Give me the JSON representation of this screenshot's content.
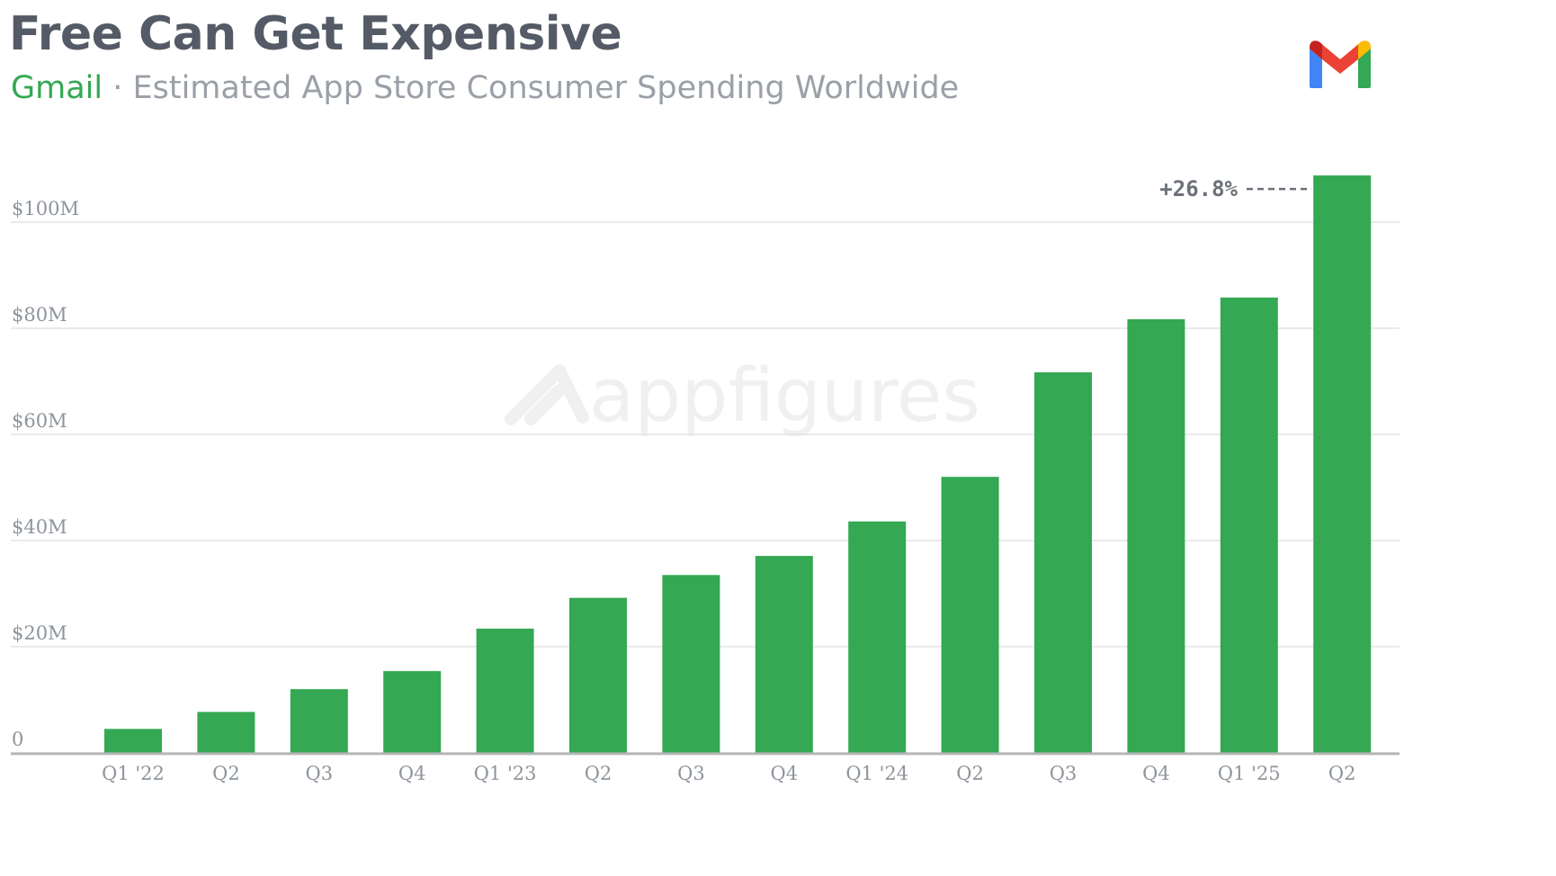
{
  "header": {
    "title": "Free Can Get Expensive",
    "app_name": "Gmail",
    "separator": " · ",
    "subtitle": "Estimated App Store Consumer Spending Worldwide",
    "logo_icon": "gmail-logo-icon"
  },
  "watermark": {
    "text": "appfigures",
    "icon": "appfigures-logo-icon"
  },
  "colors": {
    "bar": "#34a853",
    "title": "#545b66",
    "subtitle": "#9aa0a8",
    "grid": "#e3e3e3",
    "axis": "#b5b5b5"
  },
  "chart_data": {
    "type": "bar",
    "title": "Free Can Get Expensive",
    "subtitle": "Gmail · Estimated App Store Consumer Spending Worldwide",
    "categories": [
      "Q1 '22",
      "Q2",
      "Q3",
      "Q4",
      "Q1 '23",
      "Q2",
      "Q3",
      "Q4",
      "Q1 '24",
      "Q2",
      "Q3",
      "Q4",
      "Q1 '25",
      "Q2"
    ],
    "series": [
      {
        "values": [
          4.5,
          7.7,
          12.0,
          15.4,
          23.4,
          29.2,
          33.5,
          37.1,
          43.6,
          52.0,
          71.7,
          81.7,
          85.8,
          108.8
        ]
      }
    ],
    "ylim": [
      0,
      110
    ],
    "y_ticks": [
      0,
      20,
      40,
      60,
      80,
      100
    ],
    "y_tick_labels": [
      "0",
      "$20M",
      "$40M",
      "$60M",
      "$80M",
      "$100M"
    ],
    "xlabel": "",
    "ylabel": "",
    "grid": true,
    "legend": "none",
    "annotation": {
      "text": "+26.8%",
      "target_index": 13
    }
  }
}
